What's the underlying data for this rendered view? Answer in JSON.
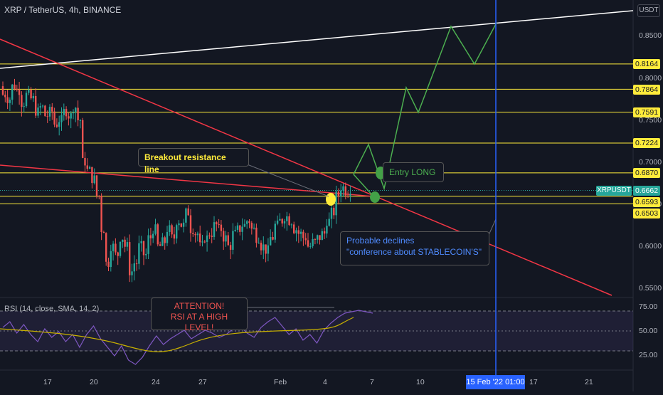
{
  "header": {
    "title": "XRP / TetherUS, 4h, BINANCE",
    "currency": "USDT"
  },
  "colors": {
    "bg": "#131722",
    "up": "#26a69a",
    "down": "#ef5350",
    "level": "#ffeb3b",
    "trend": "#f23645",
    "forecast": "#4caf50",
    "marker": "#2962ff"
  },
  "price_axis": {
    "ticks": [
      "0.8500",
      "0.8000",
      "0.7500",
      "0.7000",
      "0.6500",
      "0.6000",
      "0.5500"
    ],
    "levels": [
      "0.8164",
      "0.7864",
      "0.7591",
      "0.7224",
      "0.6870",
      "0.6593",
      "0.6503"
    ],
    "current_symbol": "XRPUSDT",
    "current_price": "0.6662"
  },
  "time_axis": {
    "labels": [
      "17",
      "20",
      "24",
      "27",
      "Feb",
      "4",
      "7",
      "10",
      "17",
      "21"
    ],
    "cursor": "15 Feb '22  01:00"
  },
  "annotations": {
    "breakout": "Breakout resistance line",
    "entry": "Entry LONG",
    "declines_line1": "Probable declines",
    "declines_line2": "\"conference about STABLECOIN'S\"",
    "attention_line1": "ATTENTION!",
    "attention_line2": "RSI AT A HIGH LEVEL!"
  },
  "rsi": {
    "title": "RSI (14, close, SMA, 14, 2)",
    "ticks": [
      "75.00",
      "50.00",
      "25.00"
    ]
  }
}
